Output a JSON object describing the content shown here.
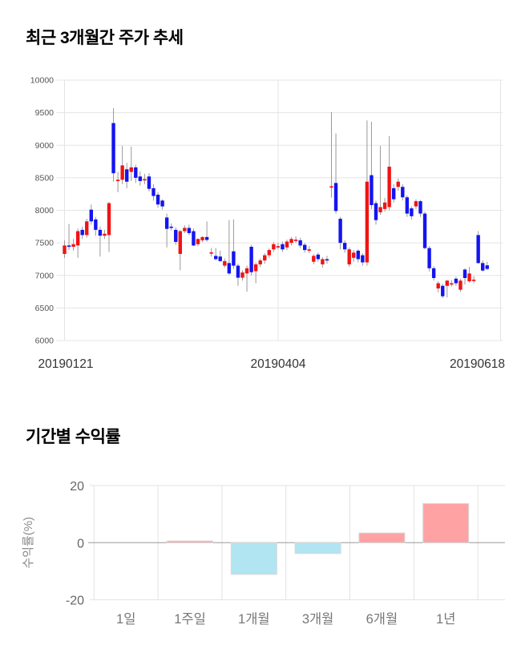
{
  "chart_data": [
    {
      "type": "candlestick",
      "title": "최근 3개월간 주가 추세",
      "x_labels": [
        "20190121",
        "20190404",
        "20190618"
      ],
      "y_ticks": [
        10000,
        9500,
        9000,
        8500,
        8000,
        7500,
        7000,
        6500,
        6000
      ],
      "ylim": [
        6000,
        10000
      ],
      "up_color": "#f01414",
      "down_color": "#1414f0",
      "wick_color": "#999999",
      "grid_color": "#e4e4e4",
      "y_tick_color": "#555555",
      "x_label_color": "#333333",
      "candles_format": "[open, high, low, close]",
      "candles": [
        [
          7330,
          7540,
          7270,
          7460
        ],
        [
          7460,
          7790,
          7390,
          7440
        ],
        [
          7440,
          7560,
          7380,
          7480
        ],
        [
          7460,
          7720,
          7270,
          7680
        ],
        [
          7700,
          7750,
          7560,
          7620
        ],
        [
          7620,
          7870,
          7580,
          7830
        ],
        [
          8010,
          8090,
          7780,
          7830
        ],
        [
          7860,
          7900,
          7610,
          7700
        ],
        [
          7700,
          7750,
          7290,
          7610
        ],
        [
          7610,
          7700,
          7560,
          7640
        ],
        [
          7620,
          8130,
          7360,
          8110
        ],
        [
          9340,
          9570,
          8440,
          8570
        ],
        [
          8470,
          8590,
          8280,
          8470
        ],
        [
          8470,
          8990,
          8400,
          8690
        ],
        [
          8630,
          8730,
          8340,
          8440
        ],
        [
          8590,
          8980,
          8450,
          8660
        ],
        [
          8660,
          8700,
          8420,
          8500
        ],
        [
          8520,
          8600,
          8380,
          8450
        ],
        [
          8480,
          8560,
          8400,
          8480
        ],
        [
          8520,
          8570,
          8290,
          8330
        ],
        [
          8340,
          8400,
          8150,
          8220
        ],
        [
          8240,
          8280,
          8040,
          8090
        ],
        [
          8150,
          8170,
          8010,
          8060
        ],
        [
          7890,
          7950,
          7430,
          7715
        ],
        [
          7750,
          7800,
          7690,
          7740
        ],
        [
          7700,
          7740,
          7470,
          7515
        ],
        [
          7330,
          7700,
          7080,
          7680
        ],
        [
          7680,
          7770,
          7650,
          7730
        ],
        [
          7730,
          7780,
          7620,
          7650
        ],
        [
          7680,
          7720,
          7450,
          7460
        ],
        [
          7480,
          7570,
          7450,
          7560
        ],
        [
          7540,
          7600,
          7510,
          7590
        ],
        [
          7590,
          7830,
          7520,
          7545
        ],
        [
          7355,
          7420,
          7290,
          7355
        ],
        [
          7300,
          7420,
          7230,
          7250
        ],
        [
          7290,
          7380,
          7210,
          7220
        ],
        [
          7150,
          7260,
          7120,
          7220
        ],
        [
          7190,
          7850,
          7010,
          7030
        ],
        [
          7370,
          7860,
          7100,
          7150
        ],
        [
          7150,
          7180,
          6840,
          6965
        ],
        [
          6965,
          7080,
          6920,
          7045
        ],
        [
          7030,
          7150,
          6750,
          7110
        ],
        [
          7440,
          7470,
          7000,
          7050
        ],
        [
          7065,
          7200,
          6880,
          7170
        ],
        [
          7170,
          7260,
          7130,
          7230
        ],
        [
          7230,
          7340,
          7180,
          7310
        ],
        [
          7310,
          7420,
          7270,
          7390
        ],
        [
          7400,
          7510,
          7360,
          7480
        ],
        [
          7450,
          7500,
          7400,
          7450
        ],
        [
          7480,
          7520,
          7360,
          7400
        ],
        [
          7430,
          7550,
          7390,
          7520
        ],
        [
          7500,
          7590,
          7460,
          7560
        ],
        [
          7550,
          7600,
          7500,
          7550
        ],
        [
          7540,
          7580,
          7420,
          7460
        ],
        [
          7470,
          7500,
          7350,
          7390
        ],
        [
          7390,
          7450,
          7340,
          7400
        ],
        [
          7210,
          7330,
          7170,
          7300
        ],
        [
          7320,
          7350,
          7210,
          7250
        ],
        [
          7170,
          7280,
          7120,
          7250
        ],
        [
          7250,
          7300,
          7180,
          7230
        ],
        [
          8370,
          9510,
          8195,
          8370
        ],
        [
          8420,
          9180,
          7950,
          7990
        ],
        [
          7870,
          7900,
          7400,
          7500
        ],
        [
          7500,
          7540,
          7350,
          7400
        ],
        [
          7170,
          7430,
          7130,
          7400
        ],
        [
          7270,
          7390,
          7210,
          7350
        ],
        [
          7380,
          7400,
          7200,
          7250
        ],
        [
          7310,
          7340,
          7150,
          7200
        ],
        [
          7200,
          9380,
          7150,
          8440
        ],
        [
          8540,
          9360,
          8020,
          8080
        ],
        [
          8110,
          8150,
          7780,
          7850
        ],
        [
          7970,
          8990,
          7930,
          8050
        ],
        [
          8020,
          8190,
          7980,
          8120
        ],
        [
          8050,
          9140,
          8000,
          8670
        ],
        [
          8340,
          8400,
          8120,
          8170
        ],
        [
          8360,
          8490,
          8300,
          8440
        ],
        [
          8360,
          8400,
          8150,
          8200
        ],
        [
          8200,
          8230,
          7900,
          7950
        ],
        [
          8030,
          8060,
          7860,
          7910
        ],
        [
          8060,
          8170,
          8020,
          8140
        ],
        [
          8140,
          8160,
          7900,
          7950
        ],
        [
          7950,
          7980,
          7400,
          7420
        ],
        [
          7420,
          7450,
          7060,
          7110
        ],
        [
          7110,
          7140,
          6920,
          6960
        ],
        [
          6800,
          6910,
          6740,
          6880
        ],
        [
          6840,
          6870,
          6650,
          6680
        ],
        [
          6840,
          6930,
          6660,
          6920
        ],
        [
          6880,
          6930,
          6830,
          6880
        ],
        [
          6950,
          6980,
          6840,
          6880
        ],
        [
          6780,
          6950,
          6750,
          6920
        ],
        [
          7090,
          7110,
          6860,
          6960
        ],
        [
          6910,
          7130,
          6890,
          7030
        ],
        [
          6935,
          6990,
          6880,
          6935
        ],
        [
          7620,
          7680,
          7180,
          7190
        ],
        [
          7190,
          7230,
          7060,
          7075
        ],
        [
          7155,
          7210,
          7080,
          7100
        ]
      ]
    },
    {
      "type": "bar",
      "title": "기간별 수익률",
      "ylabel": "수익률(%)",
      "categories": [
        "1일",
        "1주일",
        "1개월",
        "3개월",
        "6개월",
        "1년"
      ],
      "values": [
        0,
        0.6,
        -11.1,
        -3.8,
        3.4,
        13.7
      ],
      "y_ticks": [
        20,
        0,
        -20
      ],
      "ylim": [
        -20,
        20
      ],
      "positive_color": "#ffa2a4",
      "negative_color": "#b0e5f1",
      "bar_border_color": "#d9d9d9",
      "zero_line_color": "#999999",
      "grid_color": "#e3e3e3",
      "tick_color": "#666666",
      "category_color": "#777777",
      "ylabel_color": "#8a8a8a"
    }
  ]
}
